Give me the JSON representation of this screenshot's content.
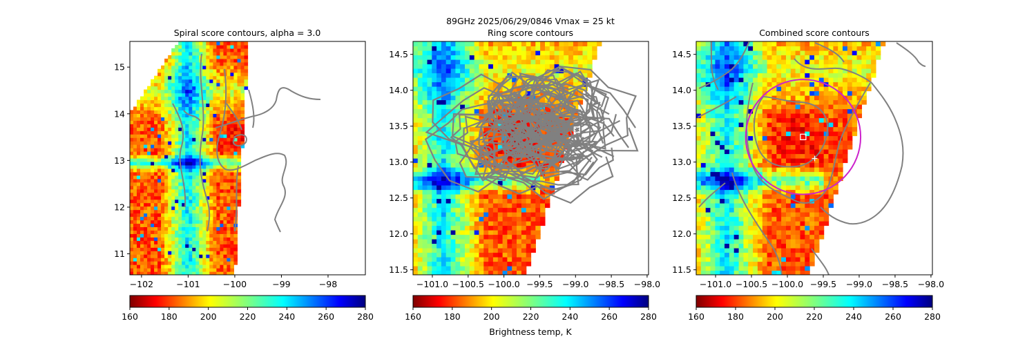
{
  "suptitle_line1": "89GHz  2025/06/29/0846    Vmax = 25 kt",
  "colorbar_label": "Brightness temp, K",
  "colormap": [
    "#00007f",
    "#0000ff",
    "#007fff",
    "#00ffff",
    "#7fff7f",
    "#ffff00",
    "#ff7f00",
    "#ff0000",
    "#7f0000"
  ],
  "contour_color": "#808080",
  "center_marker_color": "#ffffff",
  "ring_color": "#cc22cc",
  "chart_data": [
    {
      "type": "heatmap",
      "title": "Spiral score contours, alpha =  3.0",
      "xlim": [
        -102.25,
        -97.2
      ],
      "ylim": [
        10.55,
        15.55
      ],
      "xticks": [
        -102,
        -101,
        -100,
        -99,
        -98
      ],
      "xtick_labels": [
        "−102",
        "−101",
        "−100",
        "−99",
        "−98"
      ],
      "yticks": [
        11,
        12,
        13,
        14,
        15
      ],
      "ytick_labels": [
        "11",
        "12",
        "13",
        "14",
        "15"
      ],
      "swath_polygon": [
        [
          -101.2,
          15.55
        ],
        [
          -99.7,
          15.55
        ],
        [
          -100.0,
          10.55
        ],
        [
          -102.25,
          10.55
        ],
        [
          -102.25,
          14.0
        ]
      ],
      "center_marker": {
        "symbol": "plus",
        "x": -99.75,
        "y": 13.05
      },
      "colorbar": {
        "min": 160,
        "max": 280,
        "ticks": [
          160,
          180,
          200,
          220,
          240,
          260,
          280
        ]
      }
    },
    {
      "type": "heatmap",
      "title": "Ring score contours",
      "xlim": [
        -101.27,
        -97.98
      ],
      "ylim": [
        11.43,
        14.68
      ],
      "xticks": [
        -101.0,
        -100.5,
        -100.0,
        -99.5,
        -99.0,
        -98.5,
        -98.0
      ],
      "xtick_labels": [
        "−101.0",
        "−100.5",
        "−100.0",
        "−99.5",
        "−99.0",
        "−98.5",
        "−98.0"
      ],
      "yticks": [
        11.5,
        12.0,
        12.5,
        13.0,
        13.5,
        14.0,
        14.5
      ],
      "ytick_labels": [
        "11.5",
        "12.0",
        "12.5",
        "13.0",
        "13.5",
        "14.0",
        "14.5"
      ],
      "center_marker": {
        "symbol": "square",
        "x": -98.98,
        "y": 13.45
      },
      "colorbar": {
        "min": 160,
        "max": 280,
        "ticks": [
          160,
          180,
          200,
          220,
          240,
          260,
          280
        ]
      }
    },
    {
      "type": "heatmap",
      "title": "Combined score contours",
      "xlim": [
        -101.27,
        -97.98
      ],
      "ylim": [
        11.43,
        14.68
      ],
      "xticks": [
        -101.0,
        -100.5,
        -100.0,
        -99.5,
        -99.0,
        -98.5,
        -98.0
      ],
      "xtick_labels": [
        "−101.0",
        "−100.5",
        "−100.0",
        "−99.5",
        "−99.0",
        "−98.5",
        "−98.0"
      ],
      "yticks": [
        11.5,
        12.0,
        12.5,
        13.0,
        13.5,
        14.0,
        14.5
      ],
      "ytick_labels": [
        "11.5",
        "12.0",
        "12.5",
        "13.0",
        "13.5",
        "14.0",
        "14.5"
      ],
      "center_markers": [
        {
          "symbol": "square",
          "x": -99.78,
          "y": 13.35
        },
        {
          "symbol": "plus",
          "x": -99.62,
          "y": 13.05
        }
      ],
      "ring": {
        "cx": -99.78,
        "cy": 13.35,
        "radius_deg": 0.8
      },
      "colorbar": {
        "min": 160,
        "max": 280,
        "ticks": [
          160,
          180,
          200,
          220,
          240,
          260,
          280
        ]
      }
    }
  ]
}
